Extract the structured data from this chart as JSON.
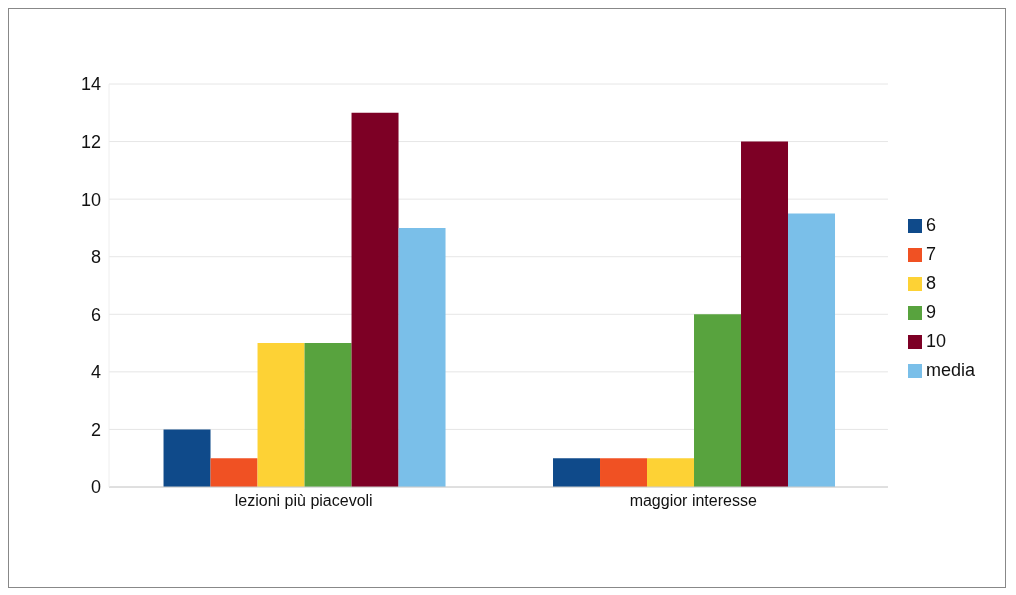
{
  "chart_data": {
    "type": "bar",
    "categories": [
      "lezioni più piacevoli",
      "maggior interesse"
    ],
    "series": [
      {
        "name": "6",
        "color": "#0f4a8a",
        "values": [
          2,
          1
        ]
      },
      {
        "name": "7",
        "color": "#f05123",
        "values": [
          1,
          1
        ]
      },
      {
        "name": "8",
        "color": "#fdd235",
        "values": [
          5,
          1
        ]
      },
      {
        "name": "9",
        "color": "#58a33e",
        "values": [
          5,
          6
        ]
      },
      {
        "name": "10",
        "color": "#7d0025",
        "values": [
          13,
          12
        ]
      },
      {
        "name": "media",
        "color": "#7abfe9",
        "values": [
          9,
          9.5
        ]
      }
    ],
    "ylim": [
      0,
      14
    ],
    "yticks": [
      0,
      2,
      4,
      6,
      8,
      10,
      12,
      14
    ],
    "grid": "y",
    "legend": "right"
  }
}
